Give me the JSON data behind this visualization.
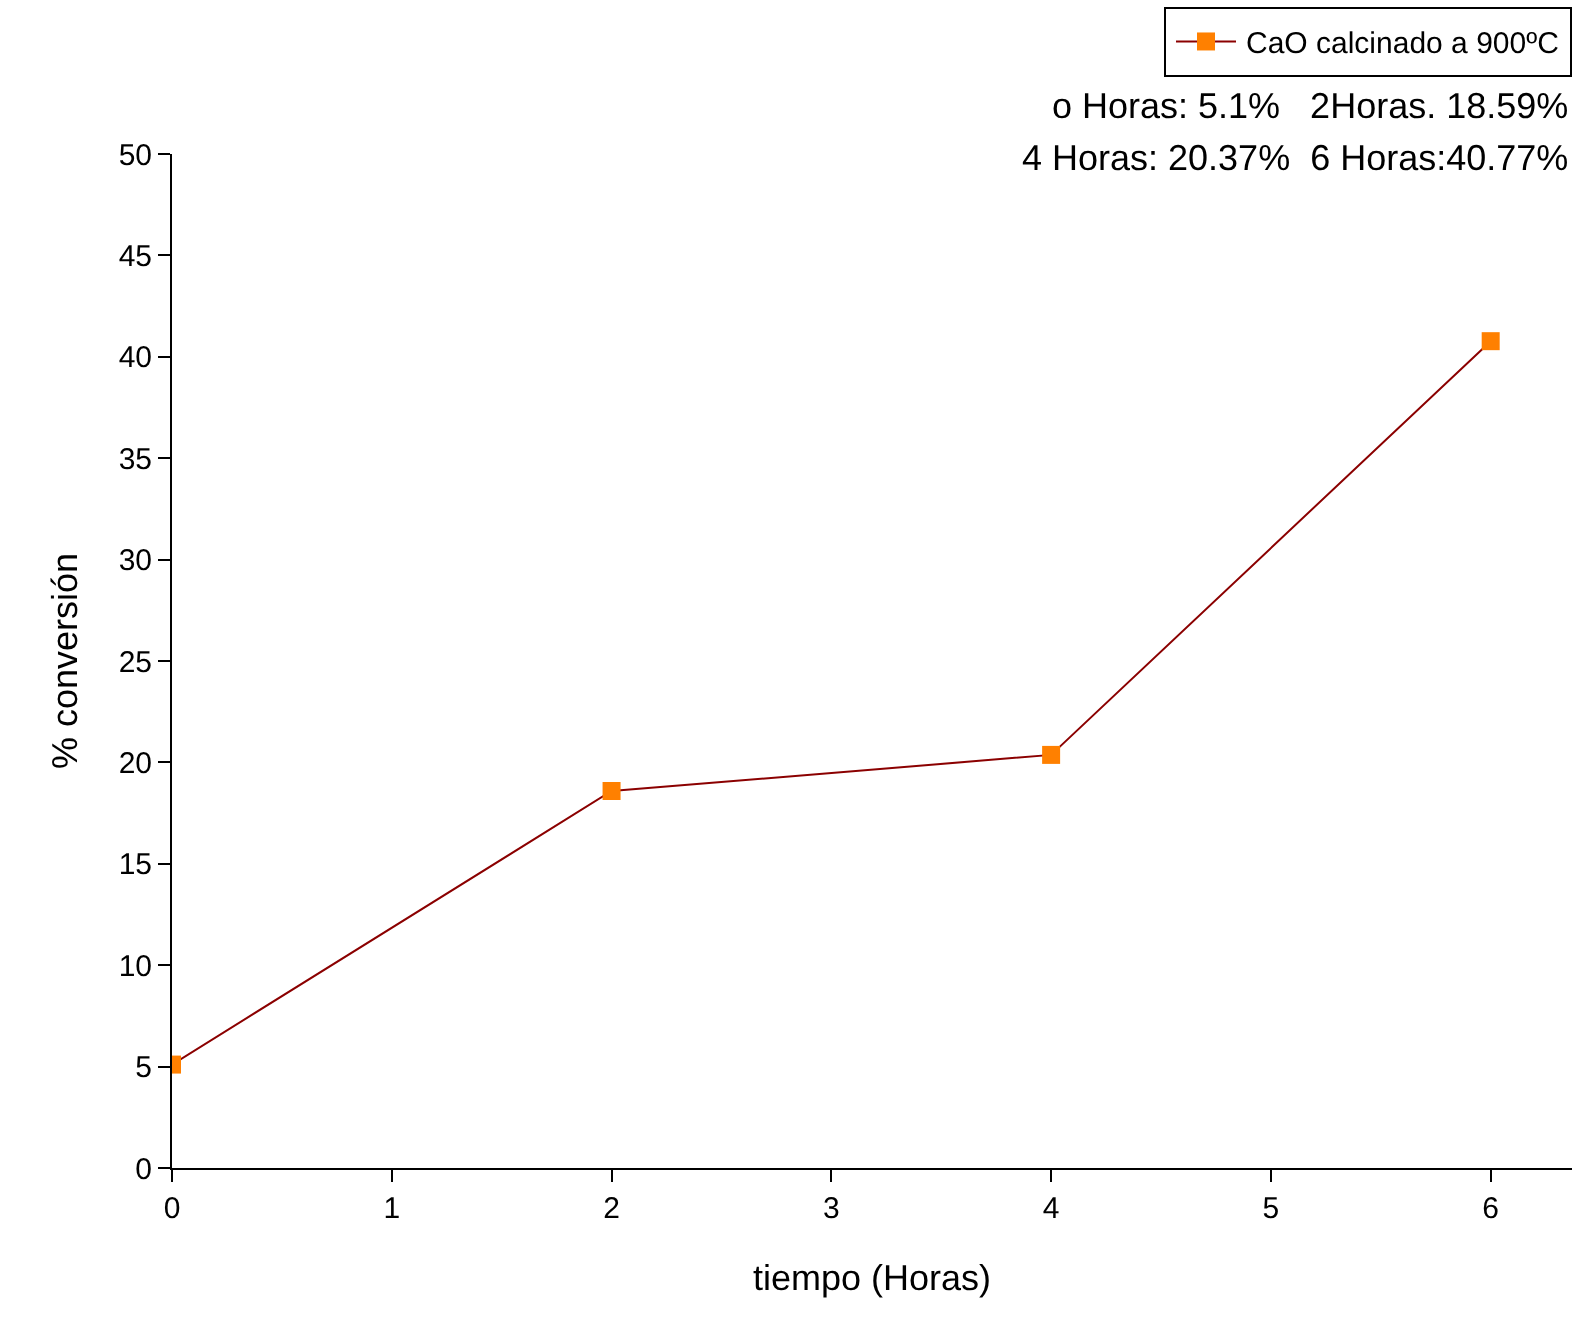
{
  "chart_data": {
    "type": "line",
    "xlabel": "tiempo (Horas)",
    "ylabel": "% conversión",
    "x": [
      0,
      2,
      4,
      6
    ],
    "series": [
      {
        "name": "CaO calcinado a 900ºC",
        "color": "#8b0000",
        "colors": [
          "#ff8000",
          "#ff8000",
          "#ff8000",
          "#ff8000"
        ],
        "values": [
          5.1,
          18.59,
          20.37,
          40.77
        ]
      }
    ],
    "xlim": [
      0,
      6.37
    ],
    "xticks": [
      0,
      1,
      2,
      3,
      4,
      5,
      6
    ],
    "ylim": [
      0,
      50
    ],
    "yticks": [
      0,
      5,
      10,
      15,
      20,
      25,
      30,
      35,
      40,
      45,
      50
    ],
    "marker": "square",
    "line_style": "solid",
    "grid": false,
    "legend": "top right",
    "annotations": [
      "o Horas: 5.1%   2Horas. 18.59%",
      "4 Horas: 20.37%  6 Horas:40.77%"
    ]
  }
}
